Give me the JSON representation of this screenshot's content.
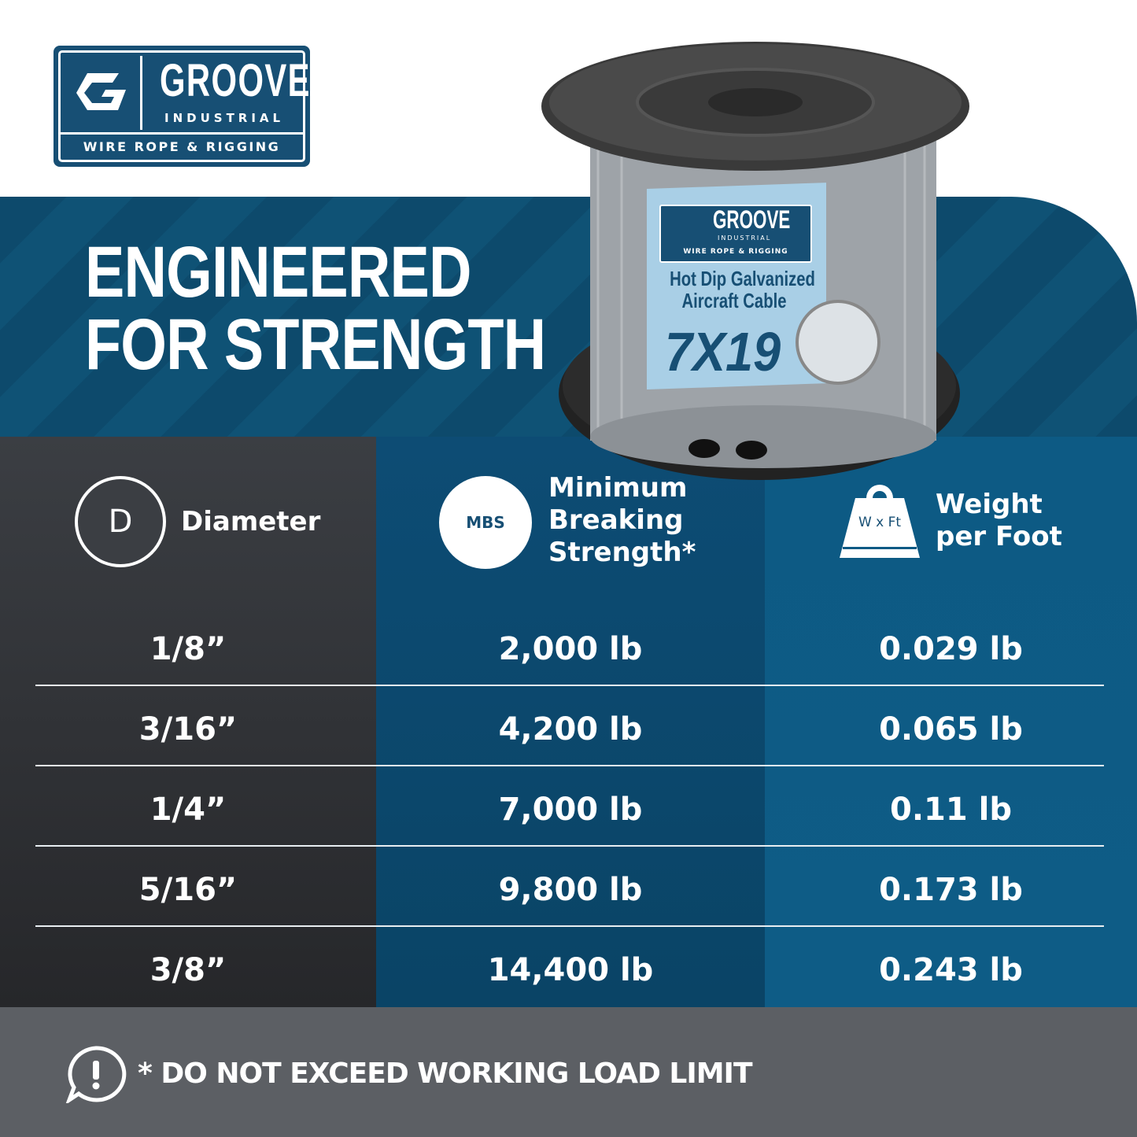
{
  "brand": {
    "name": "GROOVE",
    "sub": "INDUSTRIAL",
    "tagline": "WIRE ROPE & RIGGING",
    "color": "#174f74"
  },
  "hero": {
    "line1": "ENGINEERED",
    "line2": "FOR STRENGTH"
  },
  "spool_label": {
    "brand": "GROOVE",
    "sub": "INDUSTRIAL",
    "tagline": "WIRE ROPE & RIGGING",
    "line1": "Hot Dip Galvanized",
    "line2": "Aircraft Cable",
    "construction": "7X19"
  },
  "table": {
    "headers": [
      {
        "icon": "diameter-icon",
        "icon_text": "D",
        "label": "Diameter"
      },
      {
        "icon": "mbs-icon",
        "icon_text": "MBS",
        "label": [
          "Minimum",
          "Breaking",
          "Strength*"
        ]
      },
      {
        "icon": "weight-icon",
        "icon_text": "W x Ft",
        "label": [
          "Weight",
          "per Foot"
        ]
      }
    ],
    "rows": [
      [
        "1/8”",
        "2,000 lb",
        "0.029 lb"
      ],
      [
        "3/16”",
        "4,200 lb",
        "0.065 lb"
      ],
      [
        "1/4”",
        "7,000 lb",
        "0.11 lb"
      ],
      [
        "5/16”",
        "9,800 lb",
        "0.173 lb"
      ],
      [
        "3/8”",
        "14,400 lb",
        "0.243 lb"
      ]
    ]
  },
  "footer": {
    "icon": "alert-icon",
    "note": "* DO NOT EXCEED WORKING LOAD LIMIT"
  }
}
